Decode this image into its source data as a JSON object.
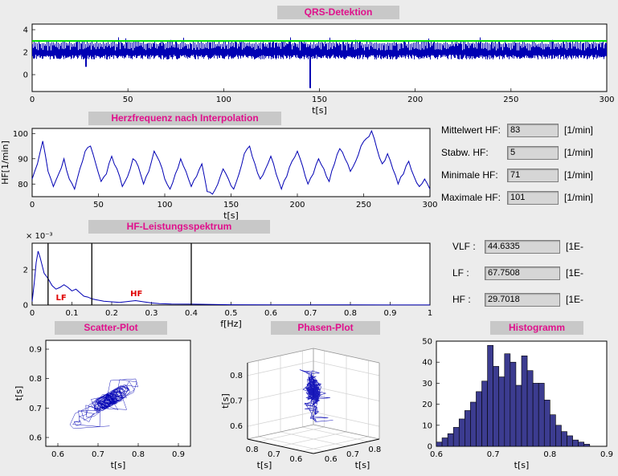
{
  "figure": {
    "bg": "#ececec",
    "axes_bg": "#ffffff",
    "strip_bg": "#c8c8c8",
    "title_color": "#e0108c",
    "line_color": "#0000b4",
    "threshold_color": "#00e000",
    "bar_color": "#3c3c90",
    "annotation_color": "#e00000"
  },
  "stats_panel": {
    "rows": [
      {
        "label": "Mittelwert HF:",
        "value": "83",
        "unit": "[1/min]"
      },
      {
        "label": "Stabw. HF:",
        "value": "5",
        "unit": "[1/min]"
      },
      {
        "label": "Minimale HF:",
        "value": "71",
        "unit": "[1/min]"
      },
      {
        "label": "Maximale HF:",
        "value": "101",
        "unit": "[1/min]"
      }
    ]
  },
  "freq_panel": {
    "rows": [
      {
        "label": "VLF :",
        "value": "44.6335",
        "unit": "[1E-"
      },
      {
        "label": "LF :",
        "value": "67.7508",
        "unit": "[1E-"
      },
      {
        "label": "HF :",
        "value": "29.7018",
        "unit": "[1E-"
      }
    ]
  },
  "chart_data": [
    {
      "id": "qrs",
      "type": "line",
      "title": "QRS-Detektion",
      "xlabel": "t[s]",
      "xlim": [
        0,
        300
      ],
      "xticks": [
        0,
        50,
        100,
        150,
        200,
        250,
        300
      ],
      "ylim": [
        -1.5,
        4.5
      ],
      "yticks": [
        0,
        2,
        4
      ],
      "threshold": 3,
      "signal": {
        "description": "ECG trace with detected QRS complexes and green detection threshold",
        "baseline_band": [
          1.35,
          2.6
        ],
        "qrs_peak_band": [
          2.7,
          3.0
        ],
        "approx_beats": 415,
        "artifacts": [
          {
            "t": 28,
            "min": 0.7
          },
          {
            "t": 145,
            "min": -1.2
          }
        ]
      },
      "seed": 7
    },
    {
      "id": "hr",
      "type": "line",
      "title": "Herzfrequenz nach Interpolation",
      "xlabel": "t[s]",
      "ylabel": "HF[1/min]",
      "xlim": [
        0,
        300
      ],
      "xticks": [
        0,
        50,
        100,
        150,
        200,
        250,
        300
      ],
      "ylim": [
        75,
        102
      ],
      "yticks": [
        80,
        90,
        100
      ],
      "x0": 0,
      "dx": 4,
      "y": [
        82,
        88,
        97,
        85,
        79,
        84,
        90,
        82,
        78,
        86,
        93,
        95,
        88,
        81,
        84,
        91,
        86,
        79,
        83,
        90,
        87,
        80,
        85,
        93,
        89,
        82,
        78,
        84,
        90,
        85,
        79,
        83,
        88,
        77,
        76,
        80,
        86,
        82,
        78,
        84,
        92,
        95,
        88,
        82,
        86,
        91,
        84,
        78,
        83,
        89,
        93,
        87,
        80,
        84,
        90,
        86,
        81,
        88,
        94,
        90,
        85,
        89,
        95,
        98,
        101,
        94,
        88,
        92,
        86,
        80,
        84,
        89,
        83,
        79,
        82,
        78
      ]
    },
    {
      "id": "spectrum",
      "type": "line",
      "title": "HF-Leistungsspektrum",
      "xlabel": "f[Hz]",
      "exp_label": "× 10⁻³",
      "y_unit": "1e-3",
      "xlim": [
        0,
        1
      ],
      "xticks": [
        0,
        0.1,
        0.2,
        0.3,
        0.4,
        0.5,
        0.6,
        0.7,
        0.8,
        0.9,
        1
      ],
      "ylim": [
        0,
        3.5
      ],
      "yticks": [
        0,
        2
      ],
      "x": [
        0,
        0.005,
        0.01,
        0.015,
        0.02,
        0.03,
        0.04,
        0.05,
        0.06,
        0.07,
        0.08,
        0.09,
        0.1,
        0.11,
        0.12,
        0.13,
        0.14,
        0.15,
        0.16,
        0.18,
        0.2,
        0.22,
        0.24,
        0.26,
        0.28,
        0.3,
        0.32,
        0.35,
        0.4,
        0.45,
        0.5,
        0.6,
        0.7,
        0.8,
        0.9,
        1
      ],
      "y": [
        0.2,
        1.2,
        2.4,
        3.05,
        2.7,
        1.8,
        1.5,
        1.1,
        0.9,
        1.0,
        1.15,
        1.0,
        0.8,
        0.9,
        0.7,
        0.5,
        0.45,
        0.35,
        0.3,
        0.22,
        0.18,
        0.15,
        0.2,
        0.25,
        0.18,
        0.12,
        0.08,
        0.06,
        0.05,
        0.03,
        0.02,
        0.015,
        0.01,
        0.01,
        0.005,
        0.005
      ],
      "band_lines": [
        0.04,
        0.15,
        0.4
      ],
      "annotations": [
        {
          "text": "LF",
          "x": 0.073,
          "y": 0.28
        },
        {
          "text": "HF",
          "x": 0.262,
          "y": 0.5
        }
      ]
    },
    {
      "id": "scatter",
      "type": "scatter",
      "title": "Scatter-Plot",
      "xlabel": "t[s]",
      "ylabel": "t[s]",
      "xlim": [
        0.57,
        0.93
      ],
      "ylim": [
        0.57,
        0.93
      ],
      "xticks": [
        0.6,
        0.7,
        0.8,
        0.9
      ],
      "yticks": [
        0.6,
        0.7,
        0.8,
        0.9
      ],
      "points_spec": {
        "count": 300,
        "mean": 0.725,
        "ar": 0.78,
        "noise_sd": 0.028,
        "jump_prob": 0.05,
        "jump_amp": 0.07,
        "min": 0.6,
        "max": 0.875,
        "seed": 13
      }
    },
    {
      "id": "phase",
      "type": "line3d",
      "title": "Phasen-Plot",
      "xlabel": "t[s]",
      "ylabel": "t[s]",
      "zlabel": "t[s]",
      "lim": [
        0.55,
        0.85
      ],
      "ticks": [
        0.6,
        0.7,
        0.8
      ],
      "points_spec": {
        "count": 300,
        "mean": 0.725,
        "ar": 0.78,
        "noise_sd": 0.028,
        "jump_prob": 0.05,
        "jump_amp": 0.07,
        "min": 0.6,
        "max": 0.875,
        "seed": 13
      }
    },
    {
      "id": "hist",
      "type": "histogram",
      "title": "Histogramm",
      "xlabel": "t[s]",
      "xlim": [
        0.6,
        0.9
      ],
      "xticks": [
        0.6,
        0.7,
        0.8,
        0.9
      ],
      "ylim": [
        0,
        50
      ],
      "yticks": [
        0,
        10,
        20,
        30,
        40,
        50
      ],
      "bin_start": 0.6,
      "bin_width": 0.01,
      "counts": [
        2,
        4,
        6,
        9,
        13,
        17,
        21,
        26,
        31,
        48,
        38,
        33,
        44,
        40,
        29,
        43,
        36,
        30,
        30,
        22,
        15,
        10,
        7,
        5,
        3,
        2,
        1
      ]
    }
  ]
}
